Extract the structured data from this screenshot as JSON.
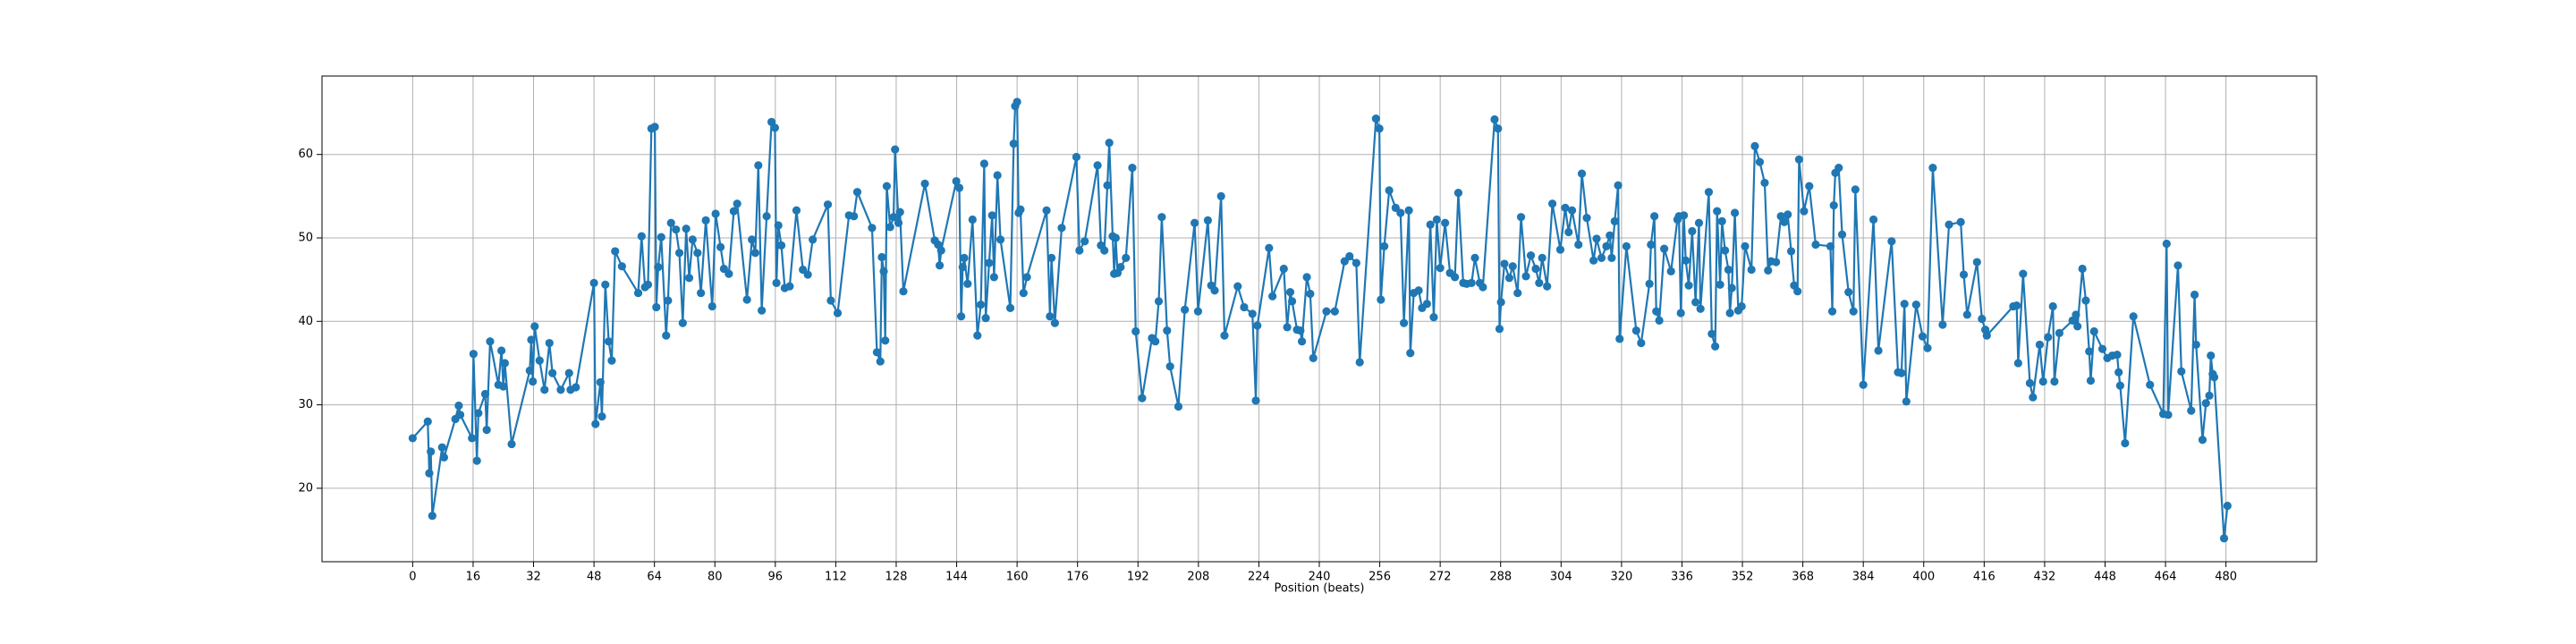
{
  "chart_data": {
    "type": "line",
    "xlabel": "Position (beats)",
    "color": "#1f77b4",
    "grid": true,
    "marker": "o",
    "xlim": [
      -24,
      504
    ],
    "ylim": [
      11.2,
      69.4
    ],
    "xticks": [
      0,
      16,
      32,
      48,
      64,
      80,
      96,
      112,
      128,
      144,
      160,
      176,
      192,
      208,
      224,
      240,
      256,
      272,
      288,
      304,
      320,
      336,
      352,
      368,
      384,
      400,
      416,
      432,
      448,
      464,
      480
    ],
    "yticks": [
      20,
      30,
      40,
      50,
      60
    ],
    "x": [
      0,
      4,
      4.4,
      4.8,
      5.2,
      7.8,
      8.3,
      11.3,
      12.2,
      12.6,
      15.7,
      16.1,
      17,
      17.4,
      19.2,
      19.6,
      20.5,
      22.7,
      23.5,
      24,
      24.4,
      26.2,
      31,
      31.4,
      31.8,
      32.3,
      33.6,
      34.9,
      36.2,
      37,
      39.2,
      41.4,
      41.8,
      43.2,
      48,
      48.4,
      49.7,
      50.1,
      51,
      51.9,
      52.7,
      53.6,
      55.4,
      59.7,
      60.6,
      61.5,
      62.3,
      63.2,
      64.1,
      64.5,
      65,
      65.8,
      67.1,
      67.6,
      68.4,
      69.7,
      70.6,
      71.5,
      72.4,
      73.2,
      74.1,
      75.4,
      76.3,
      77.6,
      79.3,
      80.2,
      81.5,
      82.4,
      83.7,
      85,
      85.9,
      88.5,
      89.8,
      90.7,
      91.5,
      92.4,
      93.7,
      95,
      95.9,
      96.3,
      96.8,
      97.6,
      98.5,
      99.8,
      101.6,
      103.3,
      104.6,
      105.9,
      109.9,
      110.7,
      112.5,
      115.5,
      116.8,
      117.7,
      121.6,
      122.9,
      123.8,
      124.2,
      124.7,
      125.1,
      125.5,
      126.4,
      127.3,
      127.7,
      128.6,
      129,
      129.9,
      135.6,
      138.2,
      139.1,
      139.5,
      139.9,
      143.9,
      144.7,
      145.2,
      145.6,
      146,
      146.9,
      148.2,
      149.5,
      150.4,
      151.3,
      151.7,
      152.6,
      153.4,
      153.9,
      154.8,
      155.6,
      158.2,
      159.1,
      159.5,
      160,
      160.4,
      160.9,
      161.7,
      162.6,
      167.8,
      168.7,
      169.1,
      170,
      171.8,
      175.7,
      176.5,
      177.9,
      181.3,
      182.2,
      183.1,
      183.9,
      184.4,
      185.3,
      185.7,
      186.1,
      186.6,
      187.4,
      188.8,
      190.5,
      191.4,
      193.1,
      195.7,
      196.6,
      197.5,
      198.3,
      199.7,
      200.5,
      202.7,
      204.4,
      207,
      207.9,
      210.5,
      211.4,
      212.3,
      214,
      214.9,
      218.4,
      220.1,
      222.3,
      223.2,
      223.6,
      226.7,
      227.6,
      230.6,
      231.5,
      232.3,
      232.8,
      234.1,
      235,
      235.4,
      236.7,
      237.6,
      238.4,
      241.9,
      244.1,
      246.7,
      248,
      249.8,
      250.7,
      255,
      255.9,
      256.3,
      257.2,
      258.5,
      260.2,
      261.5,
      262.4,
      263.7,
      264.1,
      265,
      266.3,
      267.2,
      268.5,
      269.4,
      270.3,
      271.1,
      272,
      273.3,
      274.6,
      275.9,
      276.8,
      278.1,
      279,
      280.3,
      281.2,
      282.5,
      283.3,
      286.4,
      287.3,
      287.7,
      288.1,
      289,
      290.3,
      291.2,
      292.5,
      293.4,
      294.7,
      296,
      297.3,
      298.2,
      299,
      300.3,
      301.7,
      303.8,
      305.1,
      306,
      306.9,
      308.6,
      309.5,
      310.8,
      312.6,
      313.4,
      314.7,
      316,
      316.9,
      317.4,
      318.2,
      319.1,
      319.5,
      321.3,
      323.9,
      325.2,
      327.4,
      327.8,
      328.7,
      329.2,
      330,
      331.3,
      333.1,
      334.8,
      335.2,
      335.7,
      336.5,
      337,
      337.8,
      338.7,
      339.6,
      340.5,
      340.9,
      343.1,
      343.9,
      344.8,
      345.3,
      346.1,
      346.6,
      347.4,
      348.3,
      348.7,
      349.2,
      350,
      350.9,
      351.8,
      352.7,
      354.4,
      355.3,
      356.6,
      357.9,
      358.8,
      359.6,
      360.9,
      362.2,
      363.1,
      364,
      364.9,
      365.7,
      366.6,
      367,
      368.3,
      369.7,
      371.4,
      375.3,
      375.8,
      376.2,
      376.6,
      377.5,
      378.4,
      380.1,
      381.4,
      381.9,
      384,
      386.7,
      388,
      391.5,
      393.2,
      394.1,
      394.9,
      395.4,
      398,
      399.7,
      401,
      402.4,
      405,
      406.7,
      409.8,
      410.6,
      411.5,
      414.1,
      415.4,
      416.3,
      416.7,
      423.7,
      424.6,
      425,
      426.3,
      428.1,
      428.9,
      430.7,
      431.6,
      432.9,
      434.2,
      434.6,
      435.9,
      439.4,
      440.3,
      440.7,
      442,
      442.9,
      443.8,
      444.2,
      445.1,
      447.3,
      448.6,
      449.9,
      451.2,
      451.6,
      452,
      453.3,
      455.5,
      459.9,
      463.4,
      464.3,
      464.7,
      467.3,
      468.2,
      470.8,
      471.7,
      472.1,
      473.8,
      474.7,
      475.6,
      476,
      476.5,
      476.9,
      479.5,
      480.4
    ],
    "values": [
      26,
      28,
      21.8,
      24.4,
      16.7,
      24.9,
      23.7,
      28.3,
      29.9,
      28.8,
      26,
      36.1,
      23.3,
      29,
      31.3,
      27,
      37.6,
      32.4,
      36.5,
      32.2,
      35,
      25.3,
      34.1,
      37.8,
      32.8,
      39.4,
      35.3,
      31.8,
      37.4,
      33.8,
      31.8,
      33.8,
      31.8,
      32.1,
      44.6,
      27.7,
      32.7,
      28.6,
      44.4,
      37.6,
      35.3,
      48.4,
      46.6,
      43.4,
      50.2,
      44.1,
      44.4,
      63.1,
      63.3,
      41.7,
      46.5,
      50.1,
      38.3,
      42.5,
      51.8,
      51,
      48.2,
      39.8,
      51.1,
      45.2,
      49.8,
      48.2,
      43.4,
      52.1,
      41.8,
      52.9,
      48.9,
      46.3,
      45.7,
      53.2,
      54.1,
      42.6,
      49.8,
      48.2,
      58.7,
      41.3,
      52.6,
      63.9,
      63.2,
      44.6,
      51.5,
      49.1,
      44,
      44.2,
      53.3,
      46.2,
      45.6,
      49.8,
      54,
      42.5,
      41,
      52.7,
      52.6,
      55.5,
      51.2,
      36.3,
      35.2,
      47.7,
      46,
      37.7,
      56.2,
      51.3,
      52.5,
      60.6,
      51.8,
      53.1,
      43.6,
      56.5,
      49.7,
      49.2,
      46.7,
      48.5,
      56.8,
      56,
      40.6,
      46.5,
      47.6,
      44.5,
      52.2,
      38.3,
      42,
      58.9,
      40.4,
      47,
      52.7,
      45.3,
      57.5,
      49.8,
      41.6,
      61.3,
      65.8,
      66.3,
      53,
      53.4,
      43.4,
      45.3,
      53.3,
      40.6,
      47.6,
      39.8,
      51.2,
      59.7,
      48.5,
      49.6,
      58.7,
      49.1,
      48.5,
      56.3,
      61.4,
      50.2,
      45.7,
      50,
      45.8,
      46.5,
      47.6,
      58.4,
      38.8,
      30.8,
      38,
      37.6,
      42.4,
      52.5,
      38.9,
      34.6,
      29.8,
      41.4,
      51.8,
      41.2,
      52.1,
      44.3,
      43.7,
      55,
      38.3,
      44.2,
      41.7,
      40.9,
      30.5,
      39.5,
      48.8,
      43,
      46.3,
      39.3,
      43.5,
      42.4,
      39,
      38.9,
      37.6,
      45.3,
      43.3,
      35.6,
      41.2,
      41.2,
      47.2,
      47.8,
      47,
      35.1,
      64.3,
      63.1,
      42.6,
      49,
      55.7,
      53.6,
      53,
      39.8,
      53.3,
      36.2,
      43.4,
      43.7,
      41.6,
      42.1,
      51.6,
      40.5,
      52.2,
      46.4,
      51.8,
      45.8,
      45.3,
      55.4,
      44.6,
      44.5,
      44.6,
      47.6,
      44.6,
      44.1,
      64.2,
      63.1,
      39.1,
      42.3,
      46.9,
      45.2,
      46.6,
      43.4,
      52.5,
      45.4,
      47.9,
      46.3,
      44.6,
      47.6,
      44.2,
      54.1,
      48.6,
      53.6,
      50.7,
      53.3,
      49.2,
      57.7,
      52.4,
      47.3,
      49.9,
      47.6,
      49,
      50.3,
      47.6,
      52,
      56.3,
      37.9,
      49,
      38.9,
      37.4,
      44.5,
      49.2,
      52.6,
      41.2,
      40.1,
      48.7,
      46,
      52.2,
      52.6,
      41,
      52.7,
      47.3,
      44.3,
      50.8,
      42.3,
      51.8,
      41.5,
      55.5,
      38.5,
      37,
      53.2,
      44.4,
      52,
      48.5,
      46.2,
      41,
      44,
      53,
      41.3,
      41.8,
      49,
      46.2,
      61,
      59.1,
      56.6,
      46.1,
      47.2,
      47.1,
      52.6,
      51.9,
      52.8,
      48.4,
      44.3,
      43.6,
      59.4,
      53.2,
      56.2,
      49.2,
      49,
      41.2,
      53.9,
      57.8,
      58.4,
      50.4,
      43.5,
      41.2,
      55.8,
      32.4,
      52.2,
      36.5,
      49.6,
      33.9,
      33.8,
      42.1,
      30.4,
      42,
      38.2,
      36.8,
      58.4,
      39.6,
      51.6,
      51.9,
      45.6,
      40.8,
      47.1,
      40.3,
      39,
      38.3,
      41.8,
      41.9,
      35,
      45.7,
      32.6,
      30.9,
      37.2,
      32.8,
      38.1,
      41.8,
      32.8,
      38.6,
      40.1,
      40.8,
      39.4,
      46.3,
      42.5,
      36.4,
      32.9,
      38.8,
      36.7,
      35.6,
      35.9,
      36,
      33.9,
      32.3,
      25.4,
      40.6,
      32.4,
      28.9,
      49.3,
      28.8,
      46.7,
      34,
      29.3,
      43.2,
      37.2,
      25.8,
      30.2,
      31.1,
      35.9,
      33.7,
      33.3,
      14,
      17.9
    ]
  }
}
